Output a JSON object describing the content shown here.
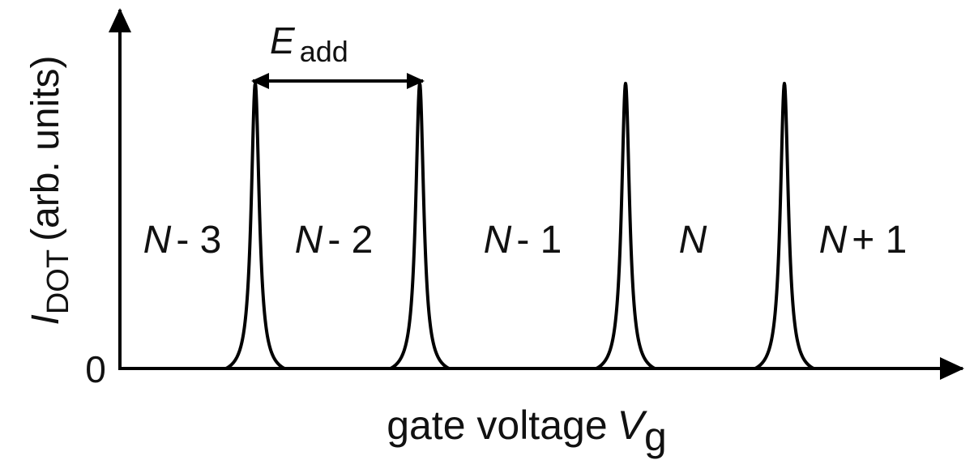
{
  "y_axis": {
    "symbol": "I",
    "subscript": "DOT",
    "unit": "(arb. units)",
    "origin": "0"
  },
  "x_axis": {
    "label": "gate voltage",
    "symbol": "V",
    "subscript": "g"
  },
  "spacing": {
    "symbol": "E",
    "subscript": "add"
  },
  "regions": [
    {
      "symbol": "N",
      "suffix": "- 3"
    },
    {
      "symbol": "N",
      "suffix": "- 2"
    },
    {
      "symbol": "N",
      "suffix": "- 1"
    },
    {
      "symbol": "N"
    },
    {
      "symbol": "N",
      "suffix": "+ 1"
    }
  ]
}
